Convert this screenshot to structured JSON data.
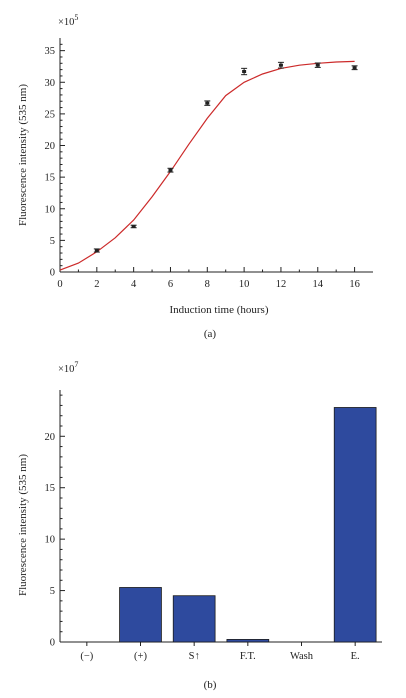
{
  "chart_data": [
    {
      "type": "scatter",
      "panel_label": "(a)",
      "xlabel": "Induction time (hours)",
      "ylabel": "Fluorescence intensity (535 nm)",
      "y_multiplier": "×10",
      "y_multiplier_exp": "5",
      "xlim": [
        0,
        17
      ],
      "ylim": [
        0,
        37
      ],
      "xticks": [
        0,
        2,
        4,
        6,
        8,
        10,
        12,
        14,
        16
      ],
      "yticks": [
        0,
        5,
        10,
        15,
        20,
        25,
        30,
        35
      ],
      "series": [
        {
          "kind": "points-with-error",
          "x": [
            2,
            4,
            6,
            8,
            10,
            12,
            14,
            16
          ],
          "y": [
            3.4,
            7.2,
            16.1,
            26.7,
            31.7,
            32.7,
            32.7,
            32.3
          ],
          "err": [
            0.25,
            0.2,
            0.3,
            0.35,
            0.5,
            0.45,
            0.35,
            0.3
          ],
          "color": "#222222"
        },
        {
          "kind": "fit-curve",
          "x": [
            0,
            1,
            2,
            3,
            4,
            5,
            6,
            7,
            8,
            9,
            10,
            11,
            12,
            13,
            14,
            15,
            16
          ],
          "y": [
            0.3,
            1.4,
            3.2,
            5.4,
            8.2,
            11.9,
            15.9,
            20.2,
            24.3,
            27.9,
            30.0,
            31.3,
            32.2,
            32.7,
            33.0,
            33.2,
            33.3
          ],
          "color": "#cc2a2a"
        }
      ]
    },
    {
      "type": "bar",
      "panel_label": "(b)",
      "xlabel": "",
      "ylabel": "Fluorescence intensity (535 nm)",
      "y_multiplier": "×10",
      "y_multiplier_exp": "7",
      "ylim": [
        0,
        24.5
      ],
      "yticks": [
        0,
        5,
        10,
        15,
        20
      ],
      "categories": [
        "(−)",
        "(+)",
        "S↑",
        "F.T.",
        "Wash",
        "E."
      ],
      "values": [
        0,
        5.3,
        4.5,
        0.25,
        0,
        22.8
      ],
      "color": "#2e4a9e"
    }
  ]
}
